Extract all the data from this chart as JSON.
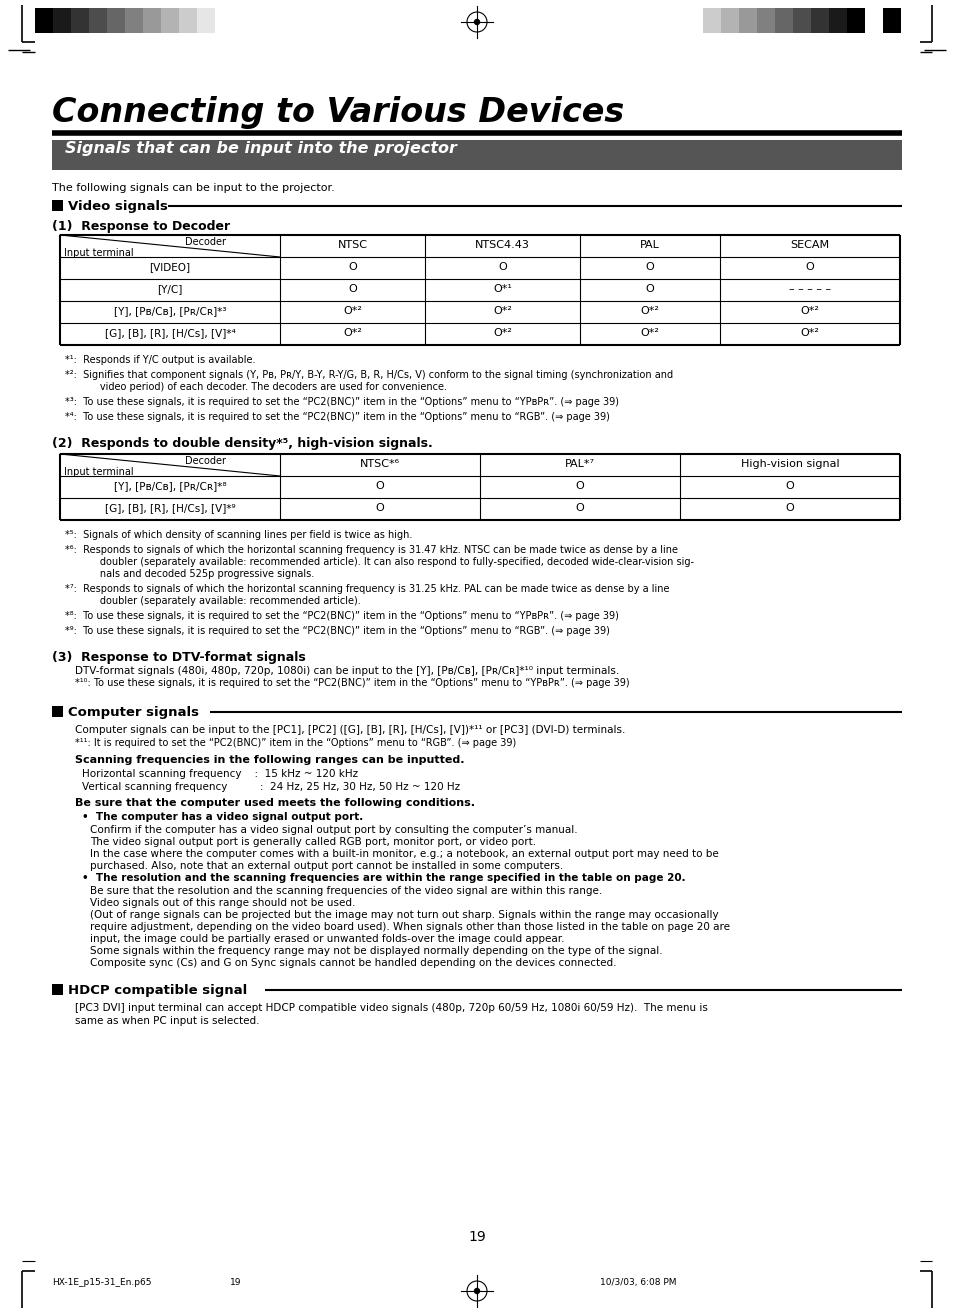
{
  "main_title": "Connecting to Various Devices",
  "subtitle_box": "Signals that can be input into the projector",
  "subtitle_box_bg": "#555555",
  "subtitle_box_fg": "#ffffff",
  "intro_text": "The following signals can be input to the projector.",
  "table1_rows": [
    [
      "[VIDEO]",
      "O",
      "O",
      "O",
      "O"
    ],
    [
      "[Y/C]",
      "O",
      "O*¹",
      "O",
      "– – – – –"
    ],
    [
      "[Y], [Pʙ/Cʙ], [Pʀ/Cʀ]*³",
      "O*²",
      "O*²",
      "O*²",
      "O*²"
    ],
    [
      "[G], [B], [R], [H/Cs], [V]*⁴",
      "O*²",
      "O*²",
      "O*²",
      "O*²"
    ]
  ],
  "table1_cols": [
    "",
    "NTSC",
    "NTSC4.43",
    "PAL",
    "SECAM"
  ],
  "footnotes1": [
    "*¹:  Responds if Y/C output is available.",
    "*²:  Signifies that component signals (Y, Pʙ, Pʀ/Y, B-Y, R-Y/G, B, R, H/Cs, V) conform to the signal timing (synchronization and\n       video period) of each decoder. The decoders are used for convenience.",
    "*³:  To use these signals, it is required to set the “PC2(BNC)” item in the “Options” menu to “YPʙPʀ”. (⇒ page 39)",
    "*⁴:  To use these signals, it is required to set the “PC2(BNC)” item in the “Options” menu to “RGB”. (⇒ page 39)"
  ],
  "sub2_header": "(2)  Responds to double density*⁵, high-vision signals.",
  "table2_cols": [
    "",
    "NTSC*⁶",
    "PAL*⁷",
    "High-vision signal"
  ],
  "table2_rows": [
    [
      "[Y], [Pʙ/Cʙ], [Pʀ/Cʀ]*⁸",
      "O",
      "O",
      "O"
    ],
    [
      "[G], [B], [R], [H/Cs], [V]*⁹",
      "O",
      "O",
      "O"
    ]
  ],
  "footnotes2": [
    "*⁵:  Signals of which density of scanning lines per field is twice as high.",
    "*⁶:  Responds to signals of which the horizontal scanning frequency is 31.47 kHz. NTSC can be made twice as dense by a line\n       doubler (separately available: recommended article). It can also respond to fully-specified, decoded wide-clear-vision sig-\n       nals and decoded 525p progressive signals.",
    "*⁷:  Responds to signals of which the horizontal scanning frequency is 31.25 kHz. PAL can be made twice as dense by a line\n       doubler (separately available: recommended article).",
    "*⁸:  To use these signals, it is required to set the “PC2(BNC)” item in the “Options” menu to “YPʙPʀ”. (⇒ page 39)",
    "*⁹:  To use these signals, it is required to set the “PC2(BNC)” item in the “Options” menu to “RGB”. (⇒ page 39)"
  ],
  "sub3_header": "(3)  Response to DTV-format signals",
  "dtv_text1": "DTV-format signals (480i, 480p, 720p, 1080i) can be input to the [Y], [Pʙ/Cʙ], [Pʀ/Cʀ]*¹⁰ input terminals.",
  "dtv_text2": "*¹⁰: To use these signals, it is required to set the “PC2(BNC)” item in the “Options” menu to “YPʙPʀ”. (⇒ page 39)",
  "comp_text1": "Computer signals can be input to the [PC1], [PC2] ([G], [B], [R], [H/Cs], [V])*¹¹ or [PC3] (DVI-D) terminals.",
  "comp_text2": "*¹¹: It is required to set the “PC2(BNC)” item in the “Options” menu to “RGB”. (⇒ page 39)",
  "scan_header": "Scanning frequencies in the following ranges can be inputted.",
  "scan_h": "Horizontal scanning frequency    :  15 kHz ~ 120 kHz",
  "scan_v": "Vertical scanning frequency          :  24 Hz, 25 Hz, 30 Hz, 50 Hz ~ 120 Hz",
  "cond_header": "Be sure that the computer used meets the following conditions.",
  "bullet1_title": "•  The computer has a video signal output port.",
  "bullet1_text1": "Confirm if the computer has a video signal output port by consulting the computer’s manual.",
  "bullet1_text2": "The video signal output port is generally called RGB port, monitor port, or video port.",
  "bullet1_text3": "In the case where the computer comes with a built-in monitor, e.g.; a notebook, an external output port may need to be",
  "bullet1_text4": "purchased. Also, note that an external output port cannot be installed in some computers.",
  "bullet2_title": "•  The resolution and the scanning frequencies are within the range specified in the table on page 20.",
  "bullet2_text1": "Be sure that the resolution and the scanning frequencies of the video signal are within this range.",
  "bullet2_text2": "Video signals out of this range should not be used.",
  "bullet2_text3": "(Out of range signals can be projected but the image may not turn out sharp. Signals within the range may occasionally",
  "bullet2_text4": "require adjustment, depending on the video board used). When signals other than those listed in the table on page 20 are",
  "bullet2_text5": "input, the image could be partially erased or unwanted folds-over the image could appear.",
  "bullet2_text6": "Some signals within the frequency range may not be displayed normally depending on the type of the signal.",
  "bullet2_text7": "Composite sync (Cs) and G on Sync signals cannot be handled depending on the devices connected.",
  "hdcp_text1": "[PC3 DVI] input terminal can accept HDCP compatible video signals (480p, 720p 60/59 Hz, 1080i 60/59 Hz).  The menu is",
  "hdcp_text2": "same as when PC input is selected.",
  "page_number": "19",
  "footer_left": "HX-1E_p15-31_En.p65",
  "footer_mid": "19",
  "footer_right": "10/3/03, 6:08 PM",
  "colors_left": [
    "#000000",
    "#1a1a1a",
    "#333333",
    "#4d4d4d",
    "#666666",
    "#808080",
    "#999999",
    "#b3b3b3",
    "#cccccc",
    "#e6e6e6",
    "#ffffff"
  ],
  "colors_right": [
    "#cccccc",
    "#b3b3b3",
    "#999999",
    "#666666",
    "#4d4d4d",
    "#333333",
    "#1a1a1a",
    "#000000",
    "#ffffff",
    "#000000",
    "#ffffff",
    "#cccccc"
  ]
}
